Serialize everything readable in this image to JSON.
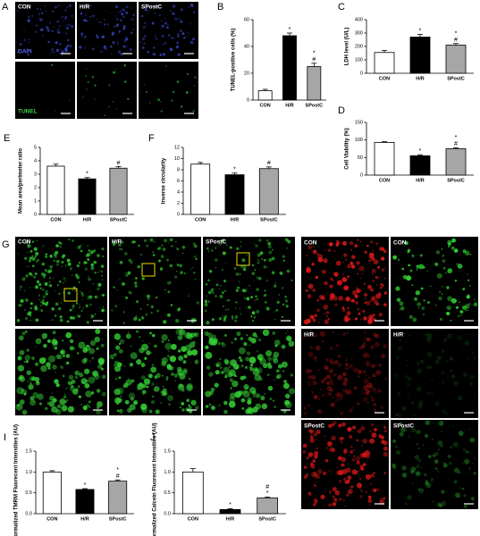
{
  "chart_data": [
    {
      "type": "bar",
      "label": "B",
      "ylabel": "TUNEL-positive cells (%)",
      "categories": [
        "CON",
        "H/R",
        "SPostC"
      ],
      "values": [
        7,
        48,
        25
      ],
      "errors": [
        1,
        2,
        2.5
      ],
      "significance": [
        [],
        [
          "*"
        ],
        [
          "*",
          "#"
        ]
      ],
      "colors": [
        "#ffffff",
        "#000000",
        "#a6a6a6"
      ],
      "ylim": [
        0,
        60
      ],
      "yticks": [
        0,
        20,
        40,
        60
      ]
    },
    {
      "type": "bar",
      "label": "C",
      "ylabel": "LDH level (U/L)",
      "categories": [
        "CON",
        "H/R",
        "SPostC"
      ],
      "values": [
        155,
        270,
        210
      ],
      "errors": [
        15,
        20,
        12
      ],
      "significance": [
        [],
        [
          "*"
        ],
        [
          "*",
          "#"
        ]
      ],
      "colors": [
        "#ffffff",
        "#000000",
        "#a6a6a6"
      ],
      "ylim": [
        0,
        400
      ],
      "yticks": [
        0,
        100,
        200,
        300,
        400
      ]
    },
    {
      "type": "bar",
      "label": "D",
      "ylabel": "Cell Viability (%)",
      "categories": [
        "CON",
        "H/R",
        "SPostC"
      ],
      "values": [
        93,
        55,
        75
      ],
      "errors": [
        2,
        3,
        3
      ],
      "significance": [
        [],
        [
          "*"
        ],
        [
          "*",
          "#"
        ]
      ],
      "colors": [
        "#ffffff",
        "#000000",
        "#a6a6a6"
      ],
      "ylim": [
        0,
        150
      ],
      "yticks": [
        0,
        50,
        100,
        150
      ]
    },
    {
      "type": "bar",
      "label": "E",
      "ylabel": "Mean area/perimeter ratio",
      "categories": [
        "CON",
        "H/R",
        "SPostC"
      ],
      "values": [
        3.6,
        2.65,
        3.45
      ],
      "errors": [
        0.15,
        0.1,
        0.12
      ],
      "significance": [
        [],
        [
          "*"
        ],
        [
          "#"
        ]
      ],
      "colors": [
        "#ffffff",
        "#000000",
        "#a6a6a6"
      ],
      "ylim": [
        0,
        5
      ],
      "yticks": [
        0,
        1,
        2,
        3,
        4,
        5
      ]
    },
    {
      "type": "bar",
      "label": "F",
      "ylabel": "Inverse circularity",
      "categories": [
        "CON",
        "H/R",
        "SPostC"
      ],
      "values": [
        9.0,
        7.1,
        8.2
      ],
      "errors": [
        0.3,
        0.3,
        0.3
      ],
      "significance": [
        [],
        [
          "*"
        ],
        [
          "#"
        ]
      ],
      "colors": [
        "#ffffff",
        "#000000",
        "#a6a6a6"
      ],
      "ylim": [
        0,
        12
      ],
      "yticks": [
        0,
        2,
        4,
        6,
        8,
        10,
        12
      ]
    },
    {
      "type": "bar",
      "label": "I",
      "ylabel": "Normalized TMRM Fluorecent Intensities (AU)",
      "categories": [
        "CON",
        "H/R",
        "SPostC"
      ],
      "values": [
        1.0,
        0.58,
        0.78
      ],
      "errors": [
        0.03,
        0.02,
        0.03
      ],
      "significance": [
        [],
        [
          "*"
        ],
        [
          "*",
          "#"
        ]
      ],
      "colors": [
        "#ffffff",
        "#000000",
        "#a6a6a6"
      ],
      "ylim": [
        0,
        1.5
      ],
      "yticks": [
        {
          "value": 0,
          "label": "0.0"
        },
        0.5,
        {
          "value": 1,
          "label": "1.0"
        },
        1.5
      ]
    },
    {
      "type": "bar",
      "label": "J",
      "ylabel": "Normalized Calcein Fluorecent Intensities (AU)",
      "categories": [
        "CON",
        "H/R",
        "SPostC"
      ],
      "values": [
        1.0,
        0.1,
        0.38
      ],
      "errors": [
        0.08,
        0.02,
        0.02
      ],
      "significance": [
        [],
        [
          "*"
        ],
        [
          "#",
          "*"
        ]
      ],
      "colors": [
        "#ffffff",
        "#000000",
        "#a6a6a6"
      ],
      "ylim": [
        0,
        1.5
      ],
      "yticks": [
        {
          "value": 0,
          "label": "0.0"
        },
        0.5,
        {
          "value": 1,
          "label": "1.0"
        },
        1.5
      ]
    }
  ],
  "panels": {
    "A": {
      "label": "A",
      "columns": [
        "CON",
        "H/R",
        "SPostC"
      ],
      "rows": [
        "DAPI",
        "TUNEL"
      ]
    },
    "G": {
      "label": "G",
      "columns": [
        "CON",
        "H/R",
        "SPostC"
      ]
    },
    "H": {
      "label": "H",
      "images": [
        [
          "CON",
          "CON"
        ],
        [
          "H/R",
          "H/R"
        ],
        [
          "SPostC",
          "SPostC"
        ]
      ]
    }
  }
}
